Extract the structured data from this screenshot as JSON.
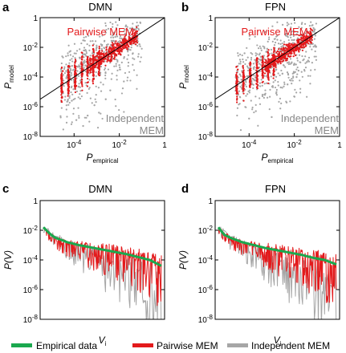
{
  "colors": {
    "empirical": "#1aa84e",
    "pairwise": "#e31a1c",
    "independent": "#a6a6a6",
    "diagonal": "#000000"
  },
  "legend": {
    "items": [
      {
        "label": "Empirical data",
        "color": "#1aa84e"
      },
      {
        "label": "Pairwise MEM",
        "color": "#e31a1c"
      },
      {
        "label": "Independent MEM",
        "color": "#a6a6a6"
      }
    ]
  },
  "chart_data": [
    {
      "type": "scatter",
      "panel": "a",
      "title": "DMN",
      "xlabel": "P",
      "xlabel_sub": "empirical",
      "ylabel": "P",
      "ylabel_sub": "model",
      "xscale": "log",
      "yscale": "log",
      "xlim_exp": [
        -5.5,
        0
      ],
      "ylim_exp": [
        -8,
        0
      ],
      "x_ticks": [
        "10^-4",
        "10^-2",
        "1"
      ],
      "y_ticks": [
        "10^-8",
        "10^-6",
        "10^-4",
        "10^-2",
        "1"
      ],
      "diagonal": true,
      "annotations": [
        {
          "lines": [
            "Pairwise MEM"
          ],
          "color": "#e31a1c"
        },
        {
          "lines": [
            "Independent",
            "MEM"
          ],
          "color": "#888888"
        }
      ],
      "series": [
        {
          "name": "Independent MEM",
          "color": "#a6a6a6",
          "points_logx_logy": [
            [
              -4.2,
              -2.3
            ],
            [
              -4.1,
              -5.6
            ],
            [
              -3.9,
              -6.9
            ],
            [
              -3.6,
              -7.3
            ],
            [
              -3.4,
              -6.6
            ],
            [
              -3.1,
              -5.9
            ],
            [
              -2.9,
              -6.4
            ],
            [
              -2.6,
              -5.5
            ],
            [
              -2.4,
              -4.9
            ],
            [
              -2.2,
              -2.6
            ],
            [
              -2.0,
              -3.2
            ],
            [
              -1.8,
              -4.3
            ],
            [
              -1.6,
              -2.1
            ],
            [
              -1.4,
              -2.4
            ],
            [
              -1.2,
              -1.9
            ],
            [
              -3.0,
              -2.0
            ],
            [
              -3.5,
              -2.5
            ],
            [
              -2.5,
              -1.8
            ],
            [
              -1.9,
              -1.4
            ],
            [
              -4.0,
              -3.5
            ]
          ]
        },
        {
          "name": "Pairwise MEM",
          "color": "#e31a1c",
          "points_logx_logy": [
            [
              -4.5,
              -4.4
            ],
            [
              -4.5,
              -3.6
            ],
            [
              -4.5,
              -5.0
            ],
            [
              -4.2,
              -4.1
            ],
            [
              -4.2,
              -3.3
            ],
            [
              -3.9,
              -3.8
            ],
            [
              -3.9,
              -4.6
            ],
            [
              -3.6,
              -3.5
            ],
            [
              -3.3,
              -3.2
            ],
            [
              -3.0,
              -3.0
            ],
            [
              -2.7,
              -2.7
            ],
            [
              -2.4,
              -2.4
            ],
            [
              -2.1,
              -2.2
            ],
            [
              -1.8,
              -1.8
            ],
            [
              -1.5,
              -1.5
            ]
          ]
        }
      ]
    },
    {
      "type": "scatter",
      "panel": "b",
      "title": "FPN",
      "xlabel": "P",
      "xlabel_sub": "empirical",
      "ylabel": "P",
      "ylabel_sub": "model",
      "xscale": "log",
      "yscale": "log",
      "xlim_exp": [
        -5.5,
        0
      ],
      "ylim_exp": [
        -8,
        0
      ],
      "x_ticks": [
        "10^-4",
        "10^-2",
        "1"
      ],
      "y_ticks": [
        "10^-8",
        "10^-6",
        "10^-4",
        "10^-2",
        "1"
      ],
      "diagonal": true,
      "annotations": [
        {
          "lines": [
            "Pairwise MEM"
          ],
          "color": "#e31a1c"
        },
        {
          "lines": [
            "Independent",
            "MEM"
          ],
          "color": "#888888"
        }
      ],
      "series": [
        {
          "name": "Independent MEM",
          "color": "#a6a6a6",
          "points_logx_logy": [
            [
              -4.2,
              -2.4
            ],
            [
              -4.0,
              -6.8
            ],
            [
              -3.7,
              -6.3
            ],
            [
              -3.3,
              -5.2
            ],
            [
              -3.0,
              -6.7
            ],
            [
              -2.8,
              -5.1
            ],
            [
              -2.6,
              -4.7
            ],
            [
              -2.3,
              -4.5
            ],
            [
              -2.0,
              -3.1
            ],
            [
              -1.8,
              -2.0
            ],
            [
              -1.5,
              -1.7
            ],
            [
              -1.3,
              -1.8
            ],
            [
              -3.2,
              -2.1
            ],
            [
              -2.5,
              -1.9
            ],
            [
              -3.8,
              -3.1
            ],
            [
              -1.9,
              -4.0
            ]
          ]
        },
        {
          "name": "Pairwise MEM",
          "color": "#e31a1c",
          "points_logx_logy": [
            [
              -4.5,
              -4.3
            ],
            [
              -4.5,
              -3.5
            ],
            [
              -4.5,
              -5.1
            ],
            [
              -4.2,
              -4.0
            ],
            [
              -3.9,
              -3.9
            ],
            [
              -3.6,
              -3.4
            ],
            [
              -3.3,
              -3.3
            ],
            [
              -3.0,
              -3.0
            ],
            [
              -2.7,
              -2.6
            ],
            [
              -2.4,
              -2.5
            ],
            [
              -2.1,
              -2.1
            ],
            [
              -1.8,
              -1.7
            ],
            [
              -1.5,
              -1.4
            ]
          ]
        }
      ]
    },
    {
      "type": "line",
      "panel": "c",
      "title": "DMN",
      "xlabel": "V",
      "xlabel_sub": "i",
      "ylabel": "P(V)",
      "yscale": "log",
      "ylim_exp": [
        -8,
        0
      ],
      "y_ticks": [
        "10^-8",
        "10^-6",
        "10^-4",
        "10^-2",
        "1"
      ],
      "x_ticks": [],
      "series": [
        {
          "name": "Empirical data",
          "color": "#1aa84e",
          "rank_frac_logy": [
            [
              0,
              -1.8
            ],
            [
              0.05,
              -2.2
            ],
            [
              0.1,
              -2.5
            ],
            [
              0.2,
              -2.8
            ],
            [
              0.3,
              -3.0
            ],
            [
              0.4,
              -3.15
            ],
            [
              0.5,
              -3.3
            ],
            [
              0.6,
              -3.45
            ],
            [
              0.7,
              -3.6
            ],
            [
              0.8,
              -3.8
            ],
            [
              0.9,
              -4.0
            ],
            [
              1.0,
              -4.4
            ]
          ]
        },
        {
          "name": "Pairwise MEM",
          "color": "#e31a1c",
          "rank_frac_logy": [
            [
              0,
              -1.9
            ],
            [
              0.1,
              -2.6
            ],
            [
              0.2,
              -2.9
            ],
            [
              0.3,
              -3.1
            ],
            [
              0.4,
              -3.3
            ],
            [
              0.5,
              -3.4
            ],
            [
              0.6,
              -3.6
            ],
            [
              0.7,
              -3.8
            ],
            [
              0.8,
              -4.0
            ],
            [
              0.9,
              -4.3
            ],
            [
              1.0,
              -4.6
            ]
          ]
        },
        {
          "name": "Independent MEM",
          "color": "#a6a6a6",
          "rank_frac_logy": [
            [
              0,
              -1.8
            ],
            [
              0.1,
              -2.4
            ],
            [
              0.2,
              -3.0
            ],
            [
              0.3,
              -3.3
            ],
            [
              0.4,
              -3.6
            ],
            [
              0.5,
              -3.9
            ],
            [
              0.6,
              -4.3
            ],
            [
              0.7,
              -4.6
            ],
            [
              0.8,
              -4.9
            ],
            [
              0.9,
              -5.3
            ],
            [
              1.0,
              -5.7
            ]
          ]
        }
      ]
    },
    {
      "type": "line",
      "panel": "d",
      "title": "FPN",
      "xlabel": "V",
      "xlabel_sub": "i",
      "ylabel": "P(V)",
      "yscale": "log",
      "ylim_exp": [
        -8,
        0
      ],
      "y_ticks": [
        "10^-8",
        "10^-6",
        "10^-4",
        "10^-2",
        "1"
      ],
      "x_ticks": [],
      "series": [
        {
          "name": "Empirical data",
          "color": "#1aa84e",
          "rank_frac_logy": [
            [
              0,
              -1.8
            ],
            [
              0.05,
              -2.3
            ],
            [
              0.1,
              -2.5
            ],
            [
              0.2,
              -2.8
            ],
            [
              0.3,
              -3.0
            ],
            [
              0.4,
              -3.2
            ],
            [
              0.5,
              -3.35
            ],
            [
              0.6,
              -3.5
            ],
            [
              0.7,
              -3.65
            ],
            [
              0.8,
              -3.85
            ],
            [
              0.9,
              -4.0
            ],
            [
              1.0,
              -4.3
            ]
          ]
        },
        {
          "name": "Pairwise MEM",
          "color": "#e31a1c",
          "rank_frac_logy": [
            [
              0,
              -1.9
            ],
            [
              0.1,
              -2.6
            ],
            [
              0.2,
              -2.9
            ],
            [
              0.3,
              -3.1
            ],
            [
              0.4,
              -3.3
            ],
            [
              0.5,
              -3.5
            ],
            [
              0.6,
              -3.7
            ],
            [
              0.7,
              -3.9
            ],
            [
              0.8,
              -4.1
            ],
            [
              0.9,
              -4.3
            ],
            [
              1.0,
              -4.6
            ]
          ]
        },
        {
          "name": "Independent MEM",
          "color": "#a6a6a6",
          "rank_frac_logy": [
            [
              0,
              -1.8
            ],
            [
              0.1,
              -2.5
            ],
            [
              0.2,
              -3.0
            ],
            [
              0.3,
              -3.4
            ],
            [
              0.4,
              -3.8
            ],
            [
              0.5,
              -4.1
            ],
            [
              0.6,
              -4.5
            ],
            [
              0.7,
              -4.8
            ],
            [
              0.8,
              -5.1
            ],
            [
              0.9,
              -5.5
            ],
            [
              1.0,
              -5.9
            ]
          ]
        }
      ]
    }
  ]
}
